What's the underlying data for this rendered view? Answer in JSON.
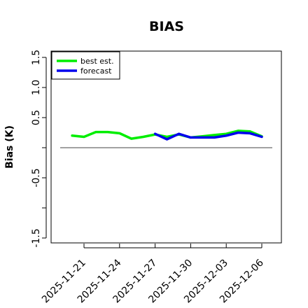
{
  "chart_data": {
    "type": "line",
    "title": "BIAS",
    "ylabel": "Bias (K)",
    "xlabel": "",
    "ylim": [
      -1.6,
      1.6
    ],
    "y_ticks": [
      -1.5,
      -1.0,
      -0.5,
      0.0,
      0.5,
      1.0,
      1.5
    ],
    "y_tick_labels": [
      "-1.5",
      "",
      "-0.5",
      "",
      "0.5",
      "1.0",
      "1.5"
    ],
    "x_ticks": [
      "2025-11-21",
      "2025-11-24",
      "2025-11-27",
      "2025-11-30",
      "2025-12-03",
      "2025-12-06"
    ],
    "x_tick_labels": [
      "2025-11-21",
      "2025-11-24",
      "2025-11-27",
      "2025-11-30",
      "2025-12-03",
      "2025-12-06"
    ],
    "highlight_tick": "2025-11-27",
    "highlight_color": "#228B22",
    "reference_line": 0.0,
    "legend": {
      "placement": "top-left"
    },
    "series": [
      {
        "name": "best est.",
        "color": "#00EE00",
        "x": [
          "2025-11-20",
          "2025-11-21",
          "2025-11-22",
          "2025-11-23",
          "2025-11-24",
          "2025-11-25",
          "2025-11-26",
          "2025-11-27",
          "2025-11-28",
          "2025-11-29",
          "2025-11-30",
          "2025-12-01",
          "2025-12-02",
          "2025-12-03",
          "2025-12-04",
          "2025-12-05",
          "2025-12-06"
        ],
        "values": [
          0.2,
          0.18,
          0.26,
          0.26,
          0.24,
          0.15,
          0.18,
          0.22,
          0.18,
          0.22,
          0.17,
          0.19,
          0.21,
          0.23,
          0.28,
          0.27,
          0.19
        ]
      },
      {
        "name": "forecast",
        "color": "#0000EE",
        "x": [
          "2025-11-27",
          "2025-11-28",
          "2025-11-29",
          "2025-11-30",
          "2025-12-01",
          "2025-12-02",
          "2025-12-03",
          "2025-12-04",
          "2025-12-05",
          "2025-12-06"
        ],
        "values": [
          0.23,
          0.14,
          0.23,
          0.17,
          0.17,
          0.17,
          0.2,
          0.25,
          0.24,
          0.18
        ]
      }
    ]
  }
}
